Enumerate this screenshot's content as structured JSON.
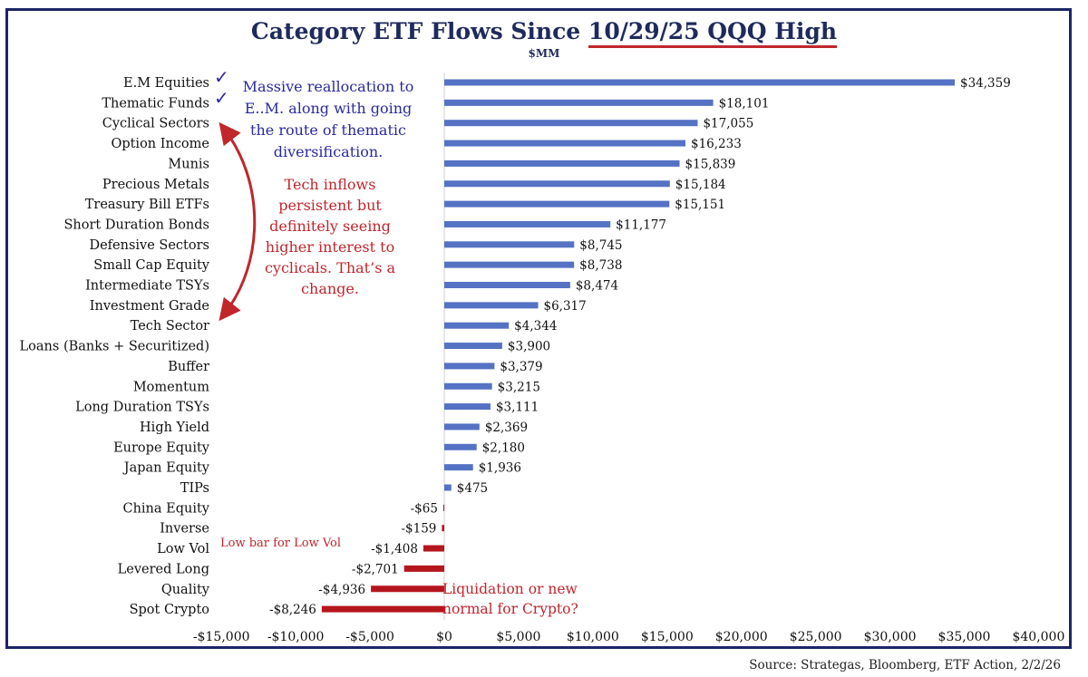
{
  "title_prefix": "Category ETF Flows Since ",
  "title_highlight": "10/29/25 QQQ High",
  "subtitle": "$MM",
  "source": "Source: Strategas, Bloomberg, ETF Action, 2/2/26",
  "annotations": {
    "em": "Massive reallocation to E..M. along with going the route of thematic diversification.",
    "tech": "Tech inflows persistent but definitely seeing higher interest to cyclicals. That’s a change.",
    "lowvol": "Low bar for Low Vol",
    "crypto": "Liquidation or new normal for Crypto?",
    "check_icon": "checkmark-icon"
  },
  "colors": {
    "positive": "#5572c4",
    "negative": "#b5161d",
    "title": "#1f2a5c",
    "frame": "#1c2566",
    "accent_red": "#c0262c",
    "accent_blue": "#2a2aa0"
  },
  "chart_data": {
    "type": "bar",
    "orientation": "horizontal",
    "categories": [
      "E.M Equities",
      "Thematic Funds",
      "Cyclical Sectors",
      "Option Income",
      "Munis",
      "Precious Metals",
      "Treasury Bill ETFs",
      "Short Duration Bonds",
      "Defensive Sectors",
      "Small Cap Equity",
      "Intermediate TSYs",
      "Investment Grade",
      "Tech Sector",
      "Loans (Banks + Securitized)",
      "Buffer",
      "Momentum",
      "Long Duration TSYs",
      "High Yield",
      "Europe Equity",
      "Japan Equity",
      "TIPs",
      "China Equity",
      "Inverse",
      "Low Vol",
      "Levered Long",
      "Quality",
      "Spot Crypto"
    ],
    "values": [
      34359,
      18101,
      17055,
      16233,
      15839,
      15184,
      15151,
      11177,
      8745,
      8738,
      8474,
      6317,
      4344,
      3900,
      3379,
      3215,
      3111,
      2369,
      2180,
      1936,
      475,
      -65,
      -159,
      -1408,
      -2701,
      -4936,
      -8246
    ],
    "value_labels": [
      "$34,359",
      "$18,101",
      "$17,055",
      "$16,233",
      "$15,839",
      "$15,184",
      "$15,151",
      "$11,177",
      "$8,745",
      "$8,738",
      "$8,474",
      "$6,317",
      "$4,344",
      "$3,900",
      "$3,379",
      "$3,215",
      "$3,111",
      "$2,369",
      "$2,180",
      "$1,936",
      "$475",
      "-$65",
      "-$159",
      "-$1,408",
      "-$2,701",
      "-$4,936",
      "-$8,246"
    ],
    "x_ticks": [
      -15000,
      -10000,
      -5000,
      0,
      5000,
      10000,
      15000,
      20000,
      25000,
      30000,
      35000,
      40000
    ],
    "x_tick_labels": [
      "-$15,000",
      "-$10,000",
      "-$5,000",
      "$0",
      "$5,000",
      "$10,000",
      "$15,000",
      "$20,000",
      "$25,000",
      "$30,000",
      "$35,000",
      "$40,000"
    ],
    "xlim": [
      -15000,
      40000
    ],
    "grid": false,
    "legend": "none"
  }
}
